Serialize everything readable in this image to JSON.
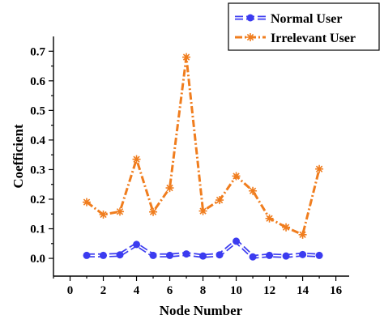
{
  "chart_data": {
    "type": "line",
    "xlabel": "Node Number",
    "ylabel": "Coefficient",
    "xlim": [
      -1,
      16.8
    ],
    "ylim": [
      -0.06,
      0.75
    ],
    "xticks": [
      0,
      2,
      4,
      6,
      8,
      10,
      12,
      14,
      16
    ],
    "yticks": [
      0.0,
      0.1,
      0.2,
      0.3,
      0.4,
      0.5,
      0.6,
      0.7
    ],
    "yticklabels": [
      "0.0",
      "0.1",
      "0.2",
      "0.3",
      "0.4",
      "0.5",
      "0.6",
      "0.7"
    ],
    "legend_position": "top-right",
    "series": [
      {
        "name": "Normal User",
        "color": "#3b3bf0",
        "marker": "circle",
        "x": [
          1,
          2,
          3,
          4,
          5,
          6,
          7,
          8,
          9,
          10,
          11,
          12,
          13,
          14,
          15
        ],
        "values": [
          0.01,
          0.01,
          0.012,
          0.047,
          0.01,
          0.01,
          0.015,
          0.008,
          0.012,
          0.058,
          0.005,
          0.01,
          0.008,
          0.013,
          0.01
        ]
      },
      {
        "name": "Irrelevant User",
        "color": "#f07d1e",
        "marker": "asterisk",
        "x": [
          1,
          2,
          3,
          4,
          5,
          6,
          7,
          8,
          9,
          10,
          11,
          12,
          13,
          14,
          15
        ],
        "values": [
          0.19,
          0.148,
          0.158,
          0.335,
          0.157,
          0.238,
          0.68,
          0.16,
          0.197,
          0.278,
          0.228,
          0.135,
          0.105,
          0.08,
          0.302
        ]
      }
    ]
  }
}
